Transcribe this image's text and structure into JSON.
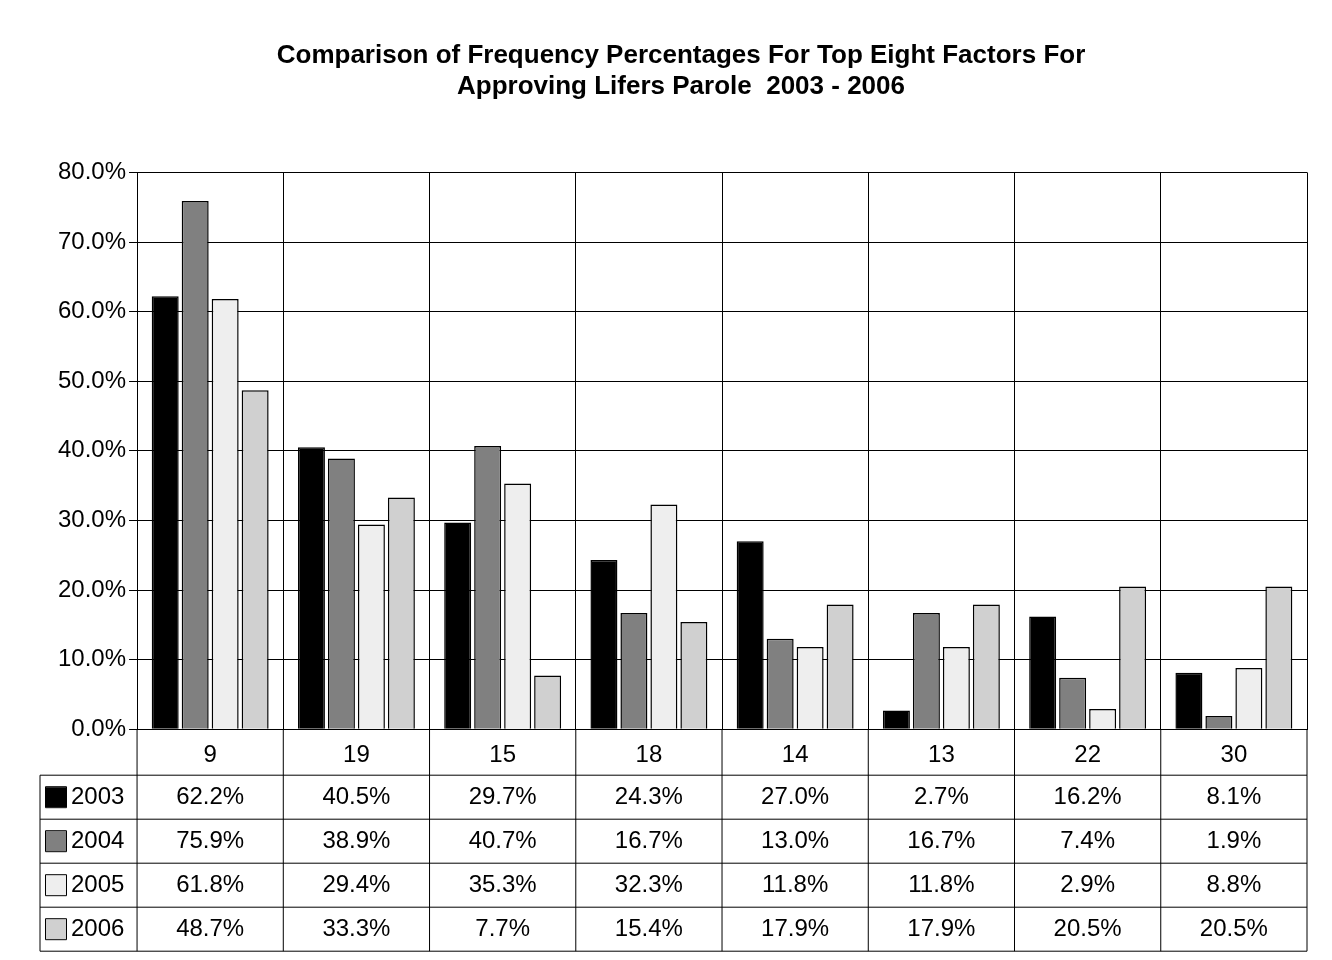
{
  "chart_data": {
    "type": "bar",
    "title": "Comparison of Frequency Percentages For Top Eight Factors For\nApproving Lifers Parole  2003 - 2006",
    "categories": [
      "9",
      "19",
      "15",
      "18",
      "14",
      "13",
      "22",
      "30"
    ],
    "series": [
      {
        "name": "2003",
        "color": "#000000",
        "values": [
          62.2,
          40.5,
          29.7,
          24.3,
          27.0,
          2.7,
          16.2,
          8.1
        ],
        "value_labels": [
          "62.2%",
          "40.5%",
          "29.7%",
          "24.3%",
          "27.0%",
          "2.7%",
          "16.2%",
          "8.1%"
        ]
      },
      {
        "name": "2004",
        "color": "#808080",
        "values": [
          75.9,
          38.9,
          40.7,
          16.7,
          13.0,
          16.7,
          7.4,
          1.9
        ],
        "value_labels": [
          "75.9%",
          "38.9%",
          "40.7%",
          "16.7%",
          "13.0%",
          "16.7%",
          "7.4%",
          "1.9%"
        ]
      },
      {
        "name": "2005",
        "color": "#eeeeee",
        "values": [
          61.8,
          29.4,
          35.3,
          32.3,
          11.8,
          11.8,
          2.9,
          8.8
        ],
        "value_labels": [
          "61.8%",
          "29.4%",
          "35.3%",
          "32.3%",
          "11.8%",
          "11.8%",
          "2.9%",
          "8.8%"
        ]
      },
      {
        "name": "2006",
        "color": "#d0d0d0",
        "values": [
          48.7,
          33.3,
          7.7,
          15.4,
          17.9,
          17.9,
          20.5,
          20.5
        ],
        "value_labels": [
          "48.7%",
          "33.3%",
          "7.7%",
          "15.4%",
          "17.9%",
          "17.9%",
          "20.5%",
          "20.5%"
        ]
      }
    ],
    "ylim": [
      0,
      80
    ],
    "yticks": [
      {
        "value": 0,
        "label": "0.0%"
      },
      {
        "value": 10,
        "label": "10.0%"
      },
      {
        "value": 20,
        "label": "20.0%"
      },
      {
        "value": 30,
        "label": "30.0%"
      },
      {
        "value": 40,
        "label": "40.0%"
      },
      {
        "value": 50,
        "label": "50.0%"
      },
      {
        "value": 60,
        "label": "60.0%"
      },
      {
        "value": 70,
        "label": "70.0%"
      },
      {
        "value": 80,
        "label": "80.0%"
      }
    ],
    "grid": true,
    "legend": "bottom"
  }
}
